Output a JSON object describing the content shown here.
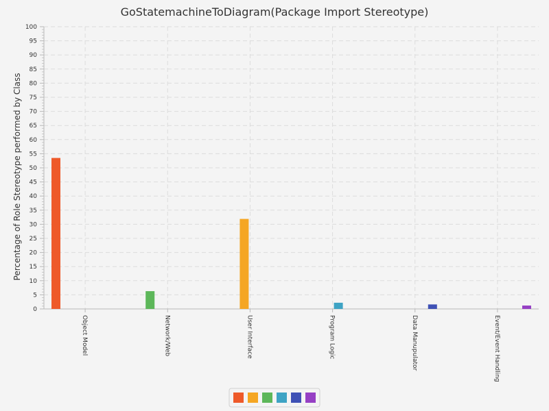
{
  "chart_data": {
    "type": "bar",
    "title": "GoStatemachineToDiagram(Package Import Stereotype)",
    "xlabel": "",
    "ylabel": "Percentage of Role Stereotype performed by Class",
    "ylim": [
      0,
      100
    ],
    "ytick_step": 5,
    "yticks": [
      "0",
      "5",
      "10",
      "15",
      "20",
      "25",
      "30",
      "35",
      "40",
      "45",
      "50",
      "55",
      "60",
      "65",
      "70",
      "75",
      "80",
      "85",
      "90",
      "95",
      "100"
    ],
    "grid": true,
    "legend_position": "bottom",
    "categories": [
      "Object Model",
      "Network/Web",
      "User Interface",
      "Program Logic",
      "Data Manupulator",
      "Event/Event Handling"
    ],
    "series": [
      {
        "values": [
          53.5,
          0,
          0,
          0,
          0,
          0
        ],
        "color": "#ee5a2a"
      },
      {
        "values": [
          0,
          6.3,
          0,
          0,
          0,
          0
        ],
        "color": "#5db75a"
      },
      {
        "values": [
          0,
          0,
          31.9,
          0,
          0,
          0
        ],
        "color": "#f5a623"
      },
      {
        "values": [
          0,
          0,
          0,
          2.2,
          0,
          0
        ],
        "color": "#3ea3c4"
      },
      {
        "values": [
          0,
          0,
          0,
          0,
          1.6,
          0
        ],
        "color": "#3f51b5"
      },
      {
        "values": [
          0,
          0,
          0,
          0,
          0,
          1.2
        ],
        "color": "#9640c4"
      }
    ],
    "legend_colors": [
      "#ee5a2a",
      "#f5a623",
      "#5db75a",
      "#3ea3c4",
      "#3f51b5",
      "#9640c4"
    ]
  }
}
